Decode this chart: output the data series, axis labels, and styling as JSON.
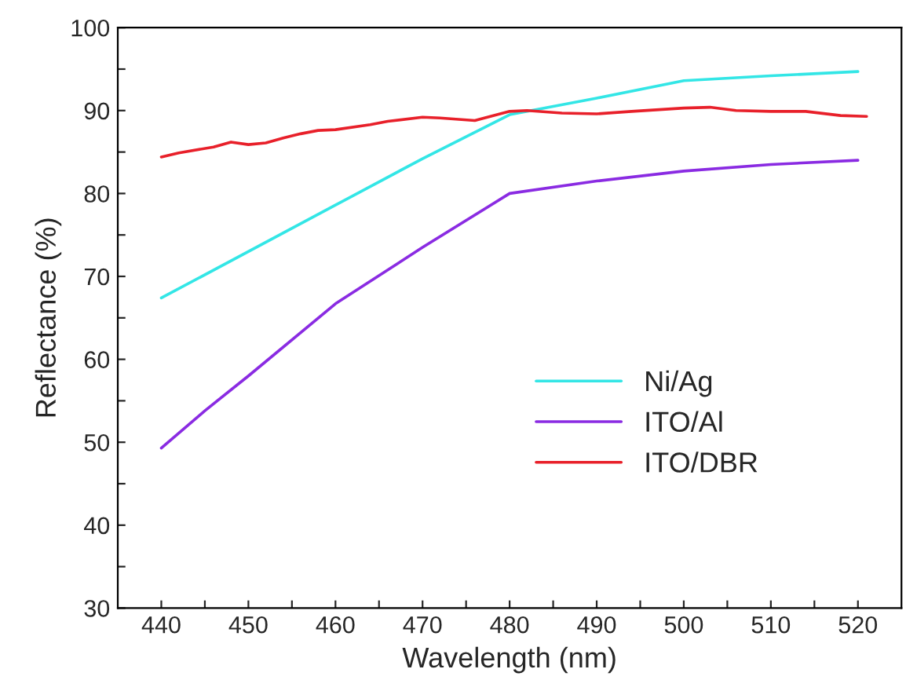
{
  "chart_data": {
    "type": "line",
    "xlabel": "Wavelength (nm)",
    "ylabel": "Reflectance (%)",
    "xlim": [
      435,
      525
    ],
    "ylim": [
      30,
      100
    ],
    "xticks": [
      440,
      {
        "value": 445,
        "label": null
      },
      450,
      {
        "value": 455,
        "label": null
      },
      460,
      {
        "value": 465,
        "label": null
      },
      470,
      {
        "value": 475,
        "label": null
      },
      480,
      {
        "value": 485,
        "label": null
      },
      490,
      {
        "value": 495,
        "label": null
      },
      500,
      {
        "value": 505,
        "label": null
      },
      510,
      {
        "value": 515,
        "label": null
      },
      520
    ],
    "yticks": [
      30,
      {
        "value": 35,
        "label": null
      },
      40,
      {
        "value": 45,
        "label": null
      },
      50,
      {
        "value": 55,
        "label": null
      },
      60,
      {
        "value": 65,
        "label": null
      },
      70,
      {
        "value": 75,
        "label": null
      },
      80,
      {
        "value": 85,
        "label": null
      },
      90,
      {
        "value": 95,
        "label": null
      },
      100
    ],
    "grid": false,
    "legend": "bottom right",
    "marker": "none",
    "line_style": "solid",
    "series": [
      {
        "name": "Ni/Ag",
        "color": "#33e6e6",
        "x": [
          440,
          460,
          470,
          480,
          490,
          500,
          510,
          520
        ],
        "values": [
          67.4,
          78.6,
          84.2,
          89.5,
          91.5,
          93.6,
          94.2,
          94.7
        ]
      },
      {
        "name": "ITO/Al",
        "color": "#8a2be2",
        "x": [
          440,
          445,
          450,
          460,
          470,
          480,
          490,
          500,
          510,
          520
        ],
        "values": [
          49.3,
          53.8,
          58.0,
          66.7,
          73.5,
          80.0,
          81.5,
          82.7,
          83.5,
          84.0
        ]
      },
      {
        "name": "ITO/DBR",
        "color": "#e8202a",
        "x": [
          440,
          442,
          446,
          448,
          450,
          452,
          454,
          456,
          458,
          460,
          464,
          466,
          470,
          472,
          476,
          480,
          482,
          486,
          490,
          494,
          500,
          503,
          506,
          510,
          514,
          518,
          521
        ],
        "values": [
          84.4,
          84.9,
          85.6,
          86.2,
          85.9,
          86.1,
          86.7,
          87.2,
          87.6,
          87.7,
          88.3,
          88.7,
          89.2,
          89.1,
          88.8,
          89.9,
          90.0,
          89.7,
          89.6,
          89.9,
          90.3,
          90.4,
          90.0,
          89.9,
          89.9,
          89.4,
          89.3
        ]
      }
    ]
  }
}
